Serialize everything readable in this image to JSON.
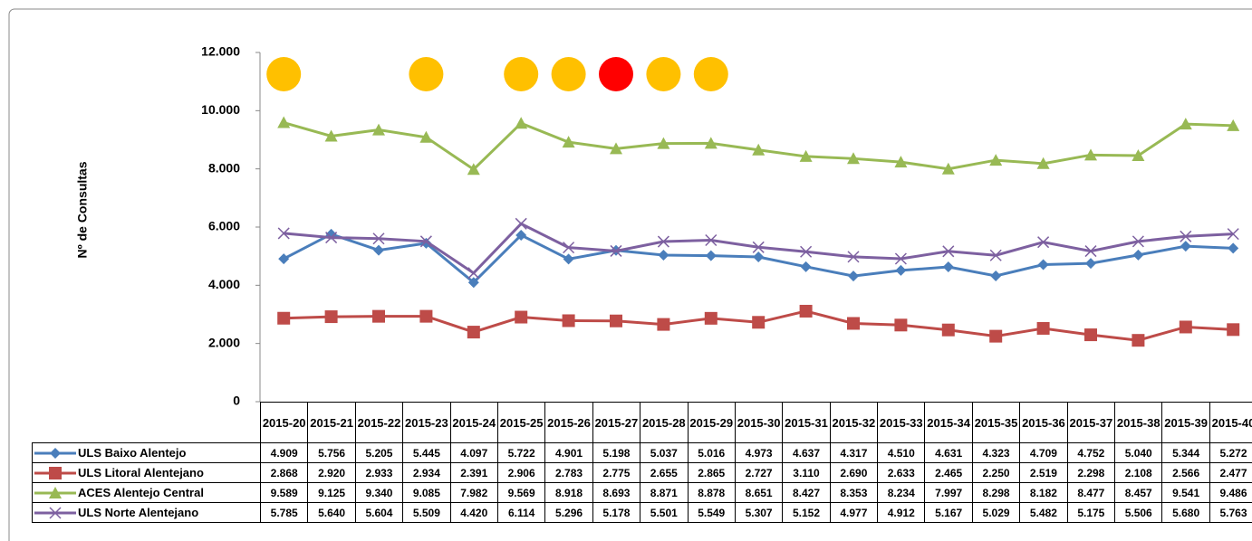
{
  "chart_data": {
    "type": "line",
    "y_axis_label": "Nº de Consultas",
    "categories": [
      "2015-20",
      "2015-21",
      "2015-22",
      "2015-23",
      "2015-24",
      "2015-25",
      "2015-26",
      "2015-27",
      "2015-28",
      "2015-29",
      "2015-30",
      "2015-31",
      "2015-32",
      "2015-33",
      "2015-34",
      "2015-35",
      "2015-36",
      "2015-37",
      "2015-38",
      "2015-39",
      "2015-40"
    ],
    "indicator_colors": [
      "#ffc000",
      null,
      null,
      "#ffc000",
      null,
      "#ffc000",
      "#ffc000",
      "#ff0000",
      "#ffc000",
      "#ffc000",
      null,
      null,
      null,
      null,
      null,
      null,
      null,
      null,
      null,
      null,
      null
    ],
    "ylim": [
      0,
      12000
    ],
    "yticks": [
      0,
      {
        "value": 2000,
        "label": "2.000"
      },
      {
        "value": 4000,
        "label": "4.000"
      },
      {
        "value": 6000,
        "label": "6.000"
      },
      {
        "value": 8000,
        "label": "8.000"
      },
      {
        "value": 10000,
        "label": "10.000"
      },
      {
        "value": 12000,
        "label": "12.000"
      }
    ],
    "grid": false,
    "series": [
      {
        "name": "ULS Baixo Alentejo",
        "color": "#4a7ebb",
        "marker": "diamond",
        "values": [
          4909,
          5756,
          5205,
          5445,
          4097,
          5722,
          4901,
          5198,
          5037,
          5016,
          4973,
          4637,
          4317,
          4510,
          4631,
          4323,
          4709,
          4752,
          5040,
          5344,
          5272
        ],
        "value_labels": [
          "4.909",
          "5.756",
          "5.205",
          "5.445",
          "4.097",
          "5.722",
          "4.901",
          "5.198",
          "5.037",
          "5.016",
          "4.973",
          "4.637",
          "4.317",
          "4.510",
          "4.631",
          "4.323",
          "4.709",
          "4.752",
          "5.040",
          "5.344",
          "5.272"
        ]
      },
      {
        "name": "ULS Litoral Alentejano",
        "color": "#be4b48",
        "marker": "square",
        "values": [
          2868,
          2920,
          2933,
          2934,
          2391,
          2906,
          2783,
          2775,
          2655,
          2865,
          2727,
          3110,
          2690,
          2633,
          2465,
          2250,
          2519,
          2298,
          2108,
          2566,
          2477
        ],
        "value_labels": [
          "2.868",
          "2.920",
          "2.933",
          "2.934",
          "2.391",
          "2.906",
          "2.783",
          "2.775",
          "2.655",
          "2.865",
          "2.727",
          "3.110",
          "2.690",
          "2.633",
          "2.465",
          "2.250",
          "2.519",
          "2.298",
          "2.108",
          "2.566",
          "2.477"
        ]
      },
      {
        "name": "ACES Alentejo Central",
        "color": "#98b954",
        "marker": "triangle",
        "values": [
          9589,
          9125,
          9340,
          9085,
          7982,
          9569,
          8918,
          8693,
          8871,
          8878,
          8651,
          8427,
          8353,
          8234,
          7997,
          8298,
          8182,
          8477,
          8457,
          9541,
          9486
        ],
        "value_labels": [
          "9.589",
          "9.125",
          "9.340",
          "9.085",
          "7.982",
          "9.569",
          "8.918",
          "8.693",
          "8.871",
          "8.878",
          "8.651",
          "8.427",
          "8.353",
          "8.234",
          "7.997",
          "8.298",
          "8.182",
          "8.477",
          "8.457",
          "9.541",
          "9.486"
        ]
      },
      {
        "name": "ULS Norte Alentejano",
        "color": "#7d60a0",
        "marker": "x",
        "values": [
          5785,
          5640,
          5604,
          5509,
          4420,
          6114,
          5296,
          5178,
          5501,
          5549,
          5307,
          5152,
          4977,
          4912,
          5167,
          5029,
          5482,
          5175,
          5506,
          5680,
          5763
        ],
        "value_labels": [
          "5.785",
          "5.640",
          "5.604",
          "5.509",
          "4.420",
          "6.114",
          "5.296",
          "5.178",
          "5.501",
          "5.549",
          "5.307",
          "5.152",
          "4.977",
          "4.912",
          "5.167",
          "5.029",
          "5.482",
          "5.175",
          "5.506",
          "5.680",
          "5.763"
        ]
      }
    ]
  }
}
